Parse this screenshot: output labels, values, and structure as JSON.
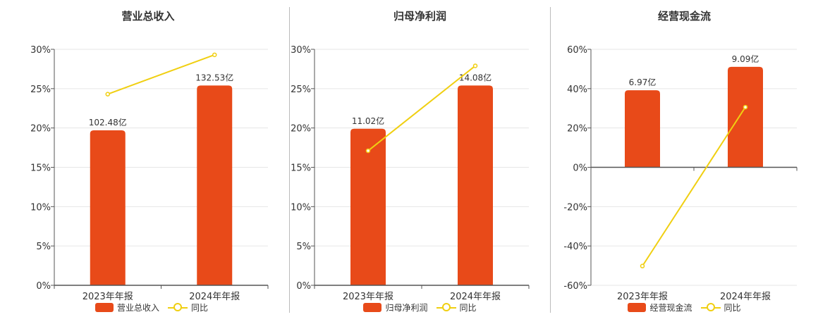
{
  "colors": {
    "bar": "#E84A19",
    "line": "#F0CF11",
    "grid": "#e6e6e6",
    "axis": "#555555"
  },
  "chart_data": [
    {
      "type": "bar",
      "title": "营业总收入",
      "categories": [
        "2023年年报",
        "2024年年报"
      ],
      "ylim": [
        0,
        30
      ],
      "yticks": [
        "0%",
        "5%",
        "10%",
        "15%",
        "20%",
        "25%",
        "30%"
      ],
      "series": [
        {
          "name": "营业总收入",
          "type": "bar",
          "values": [
            19.7,
            25.4
          ],
          "labels": [
            "102.48亿",
            "132.53亿"
          ]
        },
        {
          "name": "同比",
          "type": "line",
          "values": [
            24.3,
            29.3
          ]
        }
      ],
      "grid": true,
      "legend": "bottom"
    },
    {
      "type": "bar",
      "title": "归母净利润",
      "categories": [
        "2023年年报",
        "2024年年报"
      ],
      "ylim": [
        0,
        30
      ],
      "yticks": [
        "0%",
        "5%",
        "10%",
        "15%",
        "20%",
        "25%",
        "30%"
      ],
      "series": [
        {
          "name": "归母净利润",
          "type": "bar",
          "values": [
            19.9,
            25.4
          ],
          "labels": [
            "11.02亿",
            "14.08亿"
          ]
        },
        {
          "name": "同比",
          "type": "line",
          "values": [
            17.1,
            27.9
          ]
        }
      ],
      "grid": true,
      "legend": "bottom"
    },
    {
      "type": "bar",
      "title": "经营现金流",
      "categories": [
        "2023年年报",
        "2024年年报"
      ],
      "ylim": [
        -60,
        60
      ],
      "yticks": [
        "-60%",
        "-40%",
        "-20%",
        "0%",
        "20%",
        "40%",
        "60%"
      ],
      "series": [
        {
          "name": "经营现金流",
          "type": "bar",
          "values": [
            39.2,
            51.1
          ],
          "labels": [
            "6.97亿",
            "9.09亿"
          ]
        },
        {
          "name": "同比",
          "type": "line",
          "values": [
            -50.2,
            30.6
          ]
        }
      ],
      "grid": true,
      "legend": "bottom"
    }
  ]
}
